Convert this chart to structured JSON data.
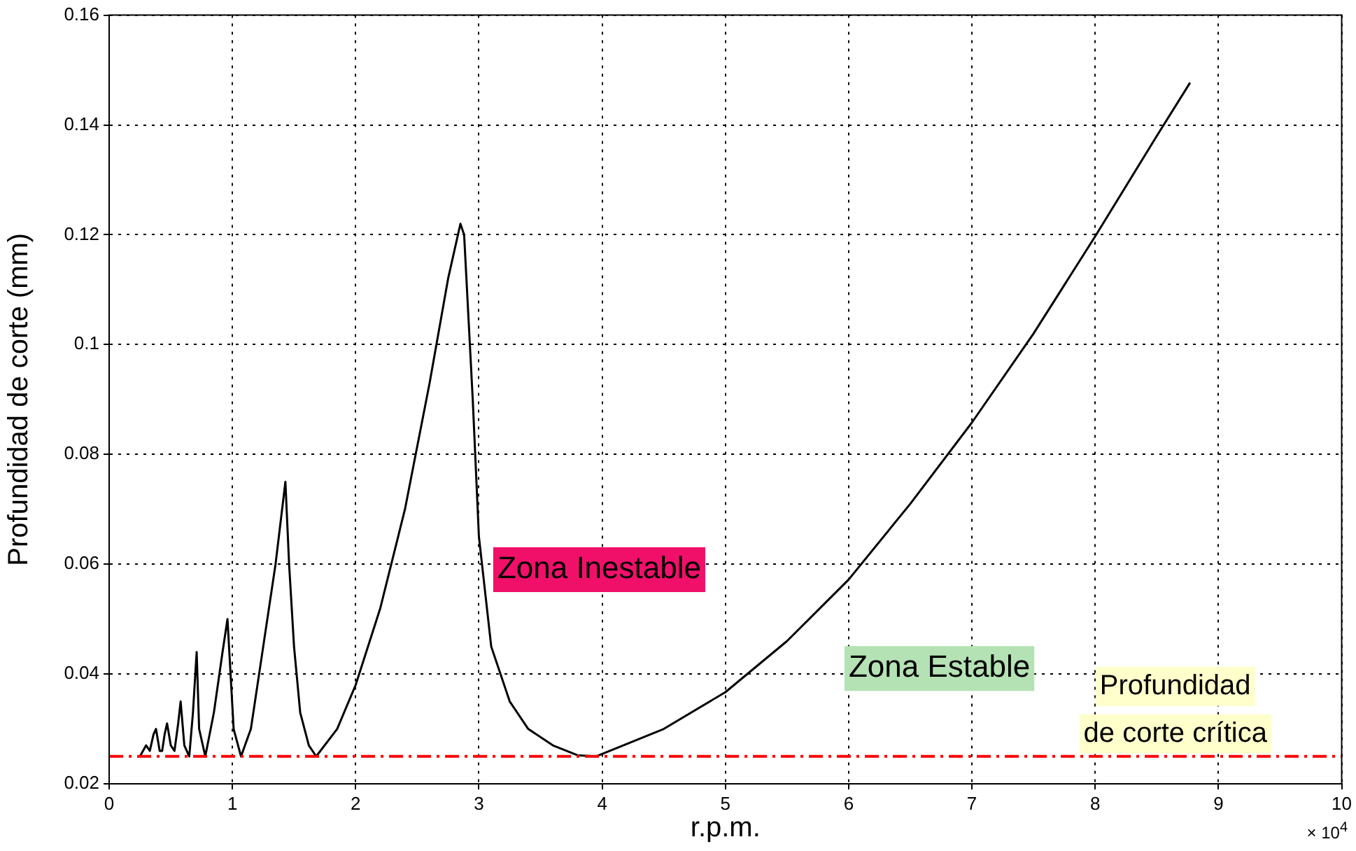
{
  "chart_data": {
    "type": "line",
    "xlabel": "r.p.m.",
    "ylabel": "Profundidad de corte (mm)",
    "xlim": [
      0,
      10
    ],
    "xticks": [
      0,
      1,
      2,
      3,
      4,
      5,
      6,
      7,
      8,
      9,
      10
    ],
    "ylim": [
      0.02,
      0.16
    ],
    "yticks": [
      {
        "value": 0.02,
        "label": "0.02"
      },
      {
        "value": 0.04,
        "label": "0.04"
      },
      {
        "value": 0.06,
        "label": "0.06"
      },
      {
        "value": 0.08,
        "label": "0.08"
      },
      {
        "value": 0.1,
        "label": "0.1"
      },
      {
        "value": 0.12,
        "label": "0.12"
      },
      {
        "value": 0.14,
        "label": "0.14"
      },
      {
        "value": 0.16,
        "label": "0.16"
      }
    ],
    "grid": true,
    "legend": false,
    "marker": "none",
    "line_style": "solid",
    "series": [
      {
        "color": "#000000",
        "x": [
          0.25,
          0.3,
          0.33,
          0.36,
          0.38,
          0.41,
          0.43,
          0.45,
          0.47,
          0.5,
          0.53,
          0.56,
          0.58,
          0.61,
          0.65,
          0.68,
          0.71,
          0.73,
          0.78,
          0.85,
          0.92,
          0.96,
          0.98,
          1.01,
          1.07,
          1.15,
          1.25,
          1.35,
          1.43,
          1.46,
          1.5,
          1.55,
          1.62,
          1.68,
          1.85,
          2.0,
          2.2,
          2.4,
          2.6,
          2.75,
          2.85,
          2.88,
          2.95,
          3.0,
          3.1,
          3.25,
          3.4,
          3.6,
          3.8,
          3.95,
          4.5,
          5.0,
          5.5,
          6.0,
          6.5,
          7.0,
          7.5,
          8.0,
          8.5,
          8.77
        ],
        "values": [
          0.025,
          0.027,
          0.026,
          0.029,
          0.03,
          0.026,
          0.026,
          0.029,
          0.031,
          0.027,
          0.026,
          0.031,
          0.035,
          0.027,
          0.025,
          0.033,
          0.044,
          0.03,
          0.025,
          0.033,
          0.044,
          0.05,
          0.042,
          0.03,
          0.025,
          0.03,
          0.045,
          0.06,
          0.075,
          0.06,
          0.045,
          0.033,
          0.027,
          0.025,
          0.03,
          0.038,
          0.052,
          0.07,
          0.093,
          0.112,
          0.122,
          0.12,
          0.09,
          0.065,
          0.045,
          0.035,
          0.03,
          0.027,
          0.0252,
          0.025,
          0.03,
          0.0367,
          0.046,
          0.0572,
          0.071,
          0.0858,
          0.102,
          0.1197,
          0.138,
          0.1477
        ]
      }
    ],
    "ref_lines": [
      {
        "axis": "y",
        "value": 0.025,
        "label": "Profundidad de corte crítica",
        "color": "#ff0000",
        "line_style": "dashed"
      }
    ],
    "annotations": [
      "Zona Inestable",
      "Zona Estable",
      "× 10$^{4}$"
    ]
  }
}
